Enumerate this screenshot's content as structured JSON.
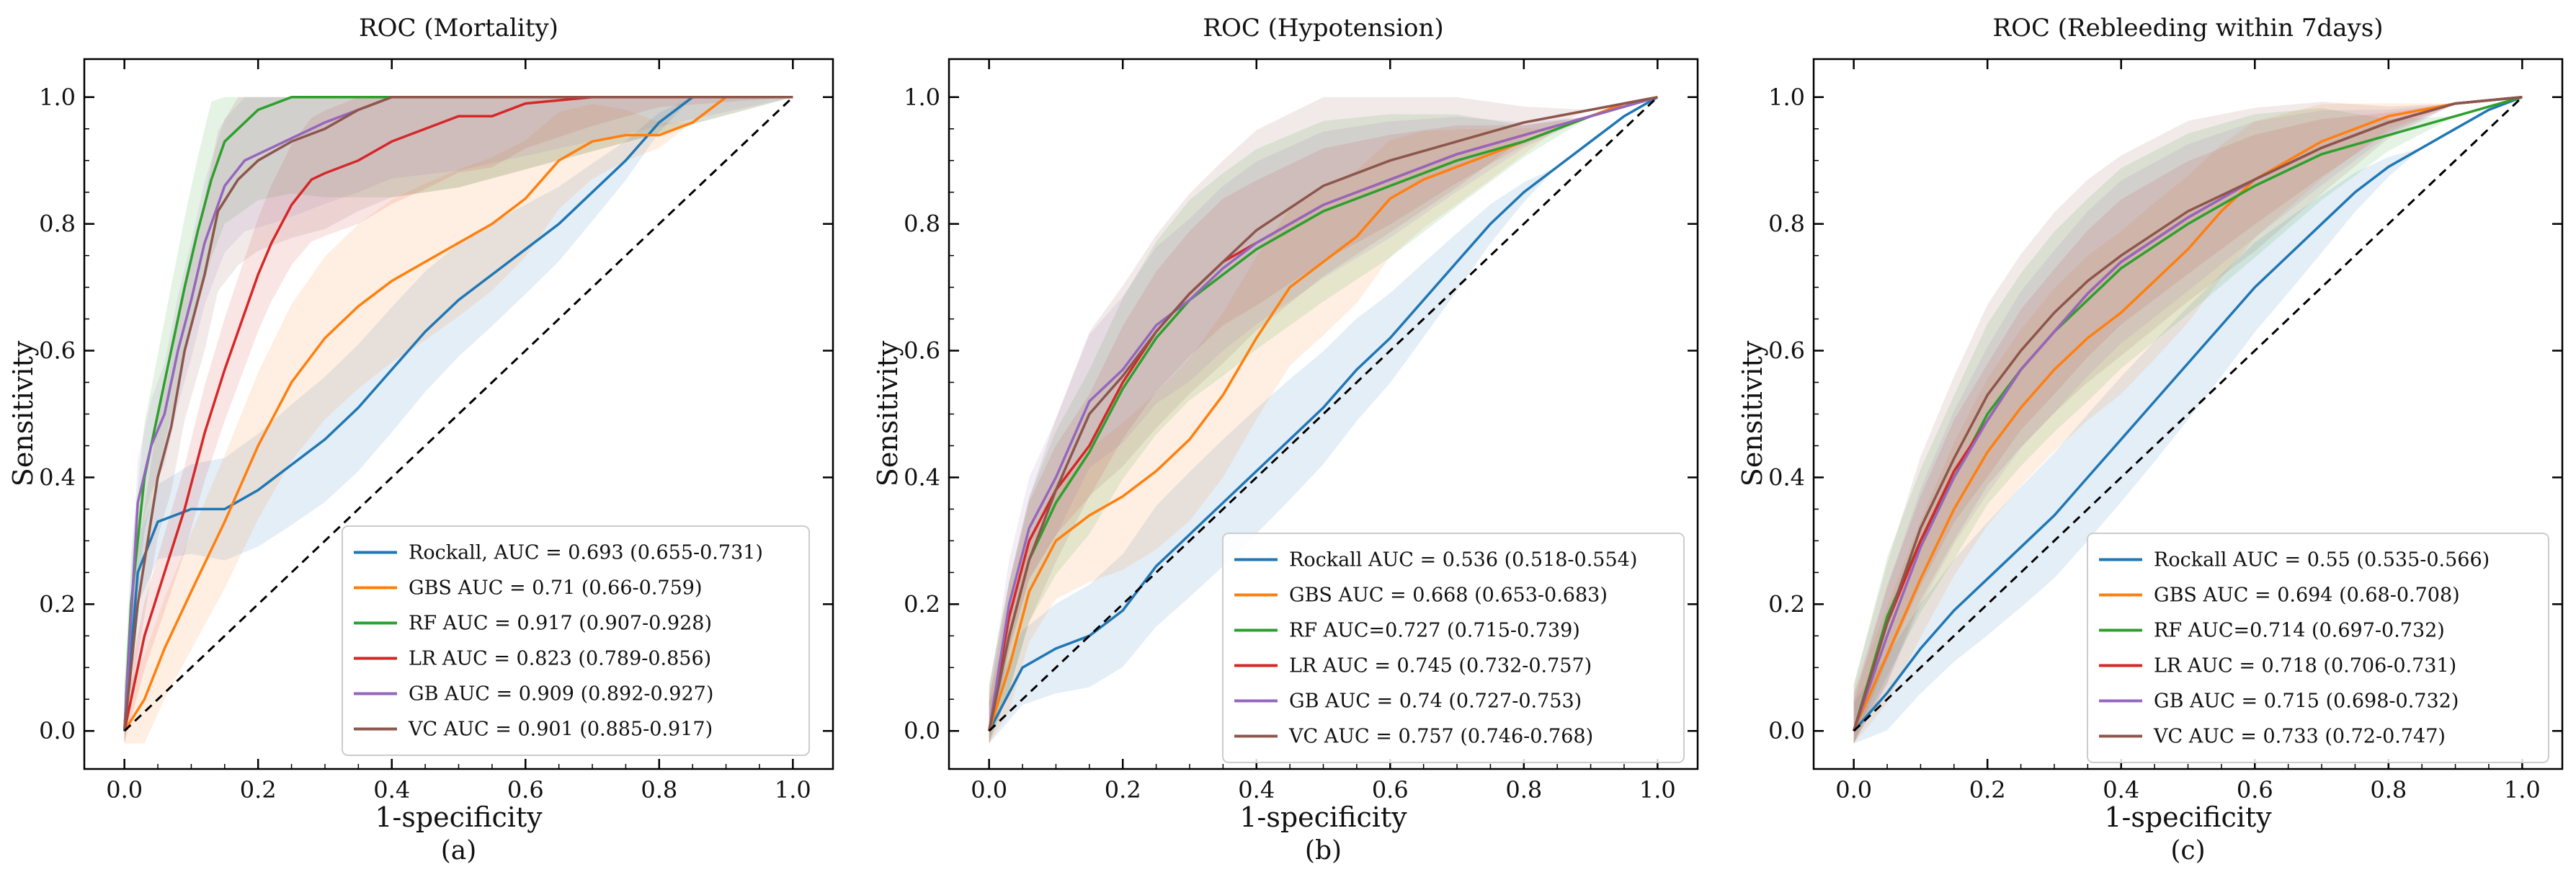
{
  "figure": {
    "ylabel": "Sensitivity",
    "xlabel": "1-specificity",
    "ticks": [
      "0.0",
      "0.2",
      "0.4",
      "0.6",
      "0.8",
      "1.0"
    ],
    "tick_values": [
      0,
      0.2,
      0.4,
      0.6,
      0.8,
      1.0
    ],
    "colors": {
      "Rockall": "#1f77b4",
      "GBS": "#ff7f0e",
      "RF": "#2ca02c",
      "LR": "#d62728",
      "GB": "#9467bd",
      "VC": "#8c564b",
      "chance": "#000000"
    }
  },
  "chart_data": [
    {
      "type": "line",
      "title": "ROC (Mortality)",
      "subcaption": "(a)",
      "xlabel": "1-specificity",
      "ylabel": "Sensitivity",
      "xlim": [
        0,
        1
      ],
      "ylim": [
        0,
        1
      ],
      "legend_position": "bottom-right",
      "series": [
        {
          "name": "Rockall, AUC = 0.693 (0.655-0.731)",
          "key": "Rockall",
          "x": [
            0,
            0.02,
            0.05,
            0.1,
            0.15,
            0.2,
            0.25,
            0.3,
            0.35,
            0.4,
            0.45,
            0.5,
            0.55,
            0.6,
            0.65,
            0.7,
            0.75,
            0.8,
            0.85,
            0.9,
            1.0
          ],
          "y": [
            0,
            0.25,
            0.33,
            0.35,
            0.35,
            0.38,
            0.42,
            0.46,
            0.51,
            0.57,
            0.63,
            0.68,
            0.72,
            0.76,
            0.8,
            0.85,
            0.9,
            0.96,
            1.0,
            1.0,
            1.0
          ]
        },
        {
          "name": "GBS AUC = 0.71 (0.66-0.759)",
          "key": "GBS",
          "x": [
            0,
            0.03,
            0.06,
            0.1,
            0.15,
            0.2,
            0.25,
            0.3,
            0.35,
            0.4,
            0.45,
            0.5,
            0.55,
            0.6,
            0.65,
            0.7,
            0.75,
            0.8,
            0.85,
            0.9,
            1.0
          ],
          "y": [
            0,
            0.05,
            0.13,
            0.22,
            0.33,
            0.45,
            0.55,
            0.62,
            0.67,
            0.71,
            0.74,
            0.77,
            0.8,
            0.84,
            0.9,
            0.93,
            0.94,
            0.94,
            0.96,
            1.0,
            1.0
          ]
        },
        {
          "name": "RF AUC = 0.917 (0.907-0.928)",
          "key": "RF",
          "x": [
            0,
            0.01,
            0.03,
            0.05,
            0.07,
            0.09,
            0.11,
            0.13,
            0.15,
            0.17,
            0.2,
            0.25,
            0.3,
            0.4,
            0.5,
            1.0
          ],
          "y": [
            0,
            0.2,
            0.4,
            0.5,
            0.6,
            0.7,
            0.79,
            0.87,
            0.93,
            0.95,
            0.98,
            1.0,
            1.0,
            1.0,
            1.0,
            1.0
          ]
        },
        {
          "name": "LR AUC = 0.823 (0.789-0.856)",
          "key": "LR",
          "x": [
            0,
            0.03,
            0.06,
            0.09,
            0.12,
            0.15,
            0.18,
            0.2,
            0.22,
            0.25,
            0.28,
            0.3,
            0.35,
            0.4,
            0.45,
            0.5,
            0.55,
            0.6,
            0.7,
            0.8,
            1.0
          ],
          "y": [
            0,
            0.15,
            0.25,
            0.35,
            0.47,
            0.57,
            0.66,
            0.72,
            0.77,
            0.83,
            0.87,
            0.88,
            0.9,
            0.93,
            0.95,
            0.97,
            0.97,
            0.99,
            1.0,
            1.0,
            1.0
          ]
        },
        {
          "name": "GB AUC = 0.909 (0.892-0.927)",
          "key": "GB",
          "x": [
            0,
            0.02,
            0.04,
            0.06,
            0.08,
            0.1,
            0.12,
            0.15,
            0.18,
            0.22,
            0.26,
            0.3,
            0.35,
            0.4,
            0.5,
            1.0
          ],
          "y": [
            0,
            0.36,
            0.45,
            0.5,
            0.6,
            0.68,
            0.77,
            0.86,
            0.9,
            0.92,
            0.94,
            0.96,
            0.98,
            1.0,
            1.0,
            1.0
          ]
        },
        {
          "name": "VC AUC = 0.901 (0.885-0.917)",
          "key": "VC",
          "x": [
            0,
            0.02,
            0.05,
            0.07,
            0.09,
            0.12,
            0.14,
            0.17,
            0.2,
            0.25,
            0.3,
            0.35,
            0.4,
            0.5,
            1.0
          ],
          "y": [
            0,
            0.2,
            0.4,
            0.48,
            0.6,
            0.72,
            0.82,
            0.87,
            0.9,
            0.93,
            0.95,
            0.98,
            1.0,
            1.0,
            1.0
          ]
        },
        {
          "name": "chance",
          "key": "chance",
          "x": [
            0,
            1
          ],
          "y": [
            0,
            1
          ]
        }
      ]
    },
    {
      "type": "line",
      "title": "ROC (Hypotension)",
      "subcaption": "(b)",
      "xlabel": "1-specificity",
      "ylabel": "Sensitivity",
      "xlim": [
        0,
        1
      ],
      "ylim": [
        0,
        1
      ],
      "legend_position": "bottom-right",
      "series": [
        {
          "name": "Rockall AUC = 0.536 (0.518-0.554)",
          "key": "Rockall",
          "x": [
            0,
            0.05,
            0.1,
            0.15,
            0.2,
            0.25,
            0.3,
            0.35,
            0.4,
            0.45,
            0.5,
            0.55,
            0.6,
            0.65,
            0.7,
            0.75,
            0.8,
            0.85,
            0.9,
            0.95,
            1.0
          ],
          "y": [
            0,
            0.1,
            0.13,
            0.15,
            0.19,
            0.26,
            0.31,
            0.36,
            0.41,
            0.46,
            0.51,
            0.57,
            0.62,
            0.68,
            0.74,
            0.8,
            0.85,
            0.89,
            0.93,
            0.97,
            1.0
          ]
        },
        {
          "name": "GBS AUC = 0.668 (0.653-0.683)",
          "key": "GBS",
          "x": [
            0,
            0.03,
            0.06,
            0.1,
            0.15,
            0.2,
            0.25,
            0.3,
            0.35,
            0.4,
            0.45,
            0.5,
            0.55,
            0.6,
            0.65,
            0.7,
            0.75,
            0.8,
            0.85,
            0.9,
            0.95,
            1.0
          ],
          "y": [
            0,
            0.1,
            0.22,
            0.3,
            0.34,
            0.37,
            0.41,
            0.46,
            0.53,
            0.62,
            0.7,
            0.74,
            0.78,
            0.84,
            0.87,
            0.89,
            0.91,
            0.93,
            0.95,
            0.97,
            0.99,
            1.0
          ]
        },
        {
          "name": "RF AUC=0.727 (0.715-0.739)",
          "key": "RF",
          "x": [
            0,
            0.03,
            0.06,
            0.1,
            0.15,
            0.2,
            0.25,
            0.3,
            0.35,
            0.4,
            0.5,
            0.6,
            0.7,
            0.8,
            0.9,
            1.0
          ],
          "y": [
            0,
            0.15,
            0.27,
            0.36,
            0.44,
            0.54,
            0.62,
            0.68,
            0.72,
            0.76,
            0.82,
            0.86,
            0.9,
            0.93,
            0.97,
            1.0
          ]
        },
        {
          "name": "LR AUC = 0.745 (0.732-0.757)",
          "key": "LR",
          "x": [
            0,
            0.03,
            0.06,
            0.1,
            0.15,
            0.2,
            0.25,
            0.3,
            0.35,
            0.4,
            0.5,
            0.6,
            0.7,
            0.8,
            0.9,
            1.0
          ],
          "y": [
            0,
            0.18,
            0.3,
            0.38,
            0.45,
            0.55,
            0.63,
            0.69,
            0.74,
            0.77,
            0.83,
            0.87,
            0.91,
            0.94,
            0.97,
            1.0
          ]
        },
        {
          "name": "GB AUC = 0.74 (0.727-0.753)",
          "key": "GB",
          "x": [
            0,
            0.03,
            0.06,
            0.1,
            0.15,
            0.2,
            0.25,
            0.3,
            0.35,
            0.4,
            0.5,
            0.6,
            0.7,
            0.8,
            0.9,
            1.0
          ],
          "y": [
            0,
            0.2,
            0.32,
            0.4,
            0.52,
            0.57,
            0.64,
            0.68,
            0.73,
            0.77,
            0.83,
            0.87,
            0.91,
            0.94,
            0.97,
            1.0
          ]
        },
        {
          "name": "VC AUC = 0.757 (0.746-0.768)",
          "key": "VC",
          "x": [
            0,
            0.03,
            0.06,
            0.1,
            0.15,
            0.2,
            0.25,
            0.3,
            0.35,
            0.4,
            0.5,
            0.6,
            0.7,
            0.8,
            0.9,
            1.0
          ],
          "y": [
            0,
            0.15,
            0.27,
            0.38,
            0.5,
            0.56,
            0.63,
            0.69,
            0.74,
            0.79,
            0.86,
            0.9,
            0.93,
            0.96,
            0.98,
            1.0
          ]
        },
        {
          "name": "chance",
          "key": "chance",
          "x": [
            0,
            1
          ],
          "y": [
            0,
            1
          ]
        }
      ]
    },
    {
      "type": "line",
      "title": "ROC (Rebleeding within 7days)",
      "subcaption": "(c)",
      "xlabel": "1-specificity",
      "ylabel": "Sensitivity",
      "xlim": [
        0,
        1
      ],
      "ylim": [
        0,
        1
      ],
      "legend_position": "bottom-right",
      "series": [
        {
          "name": "Rockall AUC = 0.55 (0.535-0.566)",
          "key": "Rockall",
          "x": [
            0,
            0.05,
            0.1,
            0.15,
            0.2,
            0.25,
            0.3,
            0.35,
            0.4,
            0.45,
            0.5,
            0.55,
            0.6,
            0.65,
            0.7,
            0.75,
            0.8,
            0.85,
            0.9,
            0.95,
            1.0
          ],
          "y": [
            0,
            0.06,
            0.13,
            0.19,
            0.24,
            0.29,
            0.34,
            0.4,
            0.46,
            0.52,
            0.58,
            0.64,
            0.7,
            0.75,
            0.8,
            0.85,
            0.89,
            0.92,
            0.95,
            0.98,
            1.0
          ]
        },
        {
          "name": "GBS AUC = 0.694 (0.68-0.708)",
          "key": "GBS",
          "x": [
            0,
            0.05,
            0.1,
            0.15,
            0.2,
            0.25,
            0.3,
            0.35,
            0.4,
            0.45,
            0.5,
            0.55,
            0.6,
            0.7,
            0.8,
            0.9,
            1.0
          ],
          "y": [
            0,
            0.12,
            0.24,
            0.35,
            0.44,
            0.51,
            0.57,
            0.62,
            0.66,
            0.71,
            0.76,
            0.82,
            0.87,
            0.93,
            0.97,
            0.99,
            1.0
          ]
        },
        {
          "name": "RF AUC=0.714 (0.697-0.732)",
          "key": "RF",
          "x": [
            0,
            0.05,
            0.1,
            0.15,
            0.2,
            0.25,
            0.3,
            0.35,
            0.4,
            0.5,
            0.6,
            0.7,
            0.8,
            0.9,
            1.0
          ],
          "y": [
            0,
            0.18,
            0.3,
            0.4,
            0.5,
            0.57,
            0.63,
            0.68,
            0.73,
            0.8,
            0.86,
            0.91,
            0.94,
            0.97,
            1.0
          ]
        },
        {
          "name": "LR AUC = 0.718 (0.706-0.731)",
          "key": "LR",
          "x": [
            0,
            0.05,
            0.1,
            0.15,
            0.2,
            0.25,
            0.3,
            0.35,
            0.4,
            0.5,
            0.6,
            0.7,
            0.8,
            0.9,
            1.0
          ],
          "y": [
            0,
            0.17,
            0.3,
            0.41,
            0.49,
            0.57,
            0.63,
            0.69,
            0.74,
            0.81,
            0.87,
            0.92,
            0.96,
            0.99,
            1.0
          ]
        },
        {
          "name": "GB AUC = 0.715 (0.698-0.732)",
          "key": "GB",
          "x": [
            0,
            0.05,
            0.1,
            0.15,
            0.2,
            0.25,
            0.3,
            0.35,
            0.4,
            0.5,
            0.6,
            0.7,
            0.8,
            0.9,
            1.0
          ],
          "y": [
            0,
            0.15,
            0.29,
            0.4,
            0.49,
            0.57,
            0.63,
            0.69,
            0.74,
            0.81,
            0.87,
            0.92,
            0.96,
            0.99,
            1.0
          ]
        },
        {
          "name": "VC AUC = 0.733 (0.72-0.747)",
          "key": "VC",
          "x": [
            0,
            0.05,
            0.1,
            0.15,
            0.2,
            0.25,
            0.3,
            0.35,
            0.4,
            0.5,
            0.6,
            0.7,
            0.8,
            0.9,
            1.0
          ],
          "y": [
            0,
            0.17,
            0.32,
            0.43,
            0.53,
            0.6,
            0.66,
            0.71,
            0.75,
            0.82,
            0.87,
            0.92,
            0.96,
            0.99,
            1.0
          ]
        },
        {
          "name": "chance",
          "key": "chance",
          "x": [
            0,
            1
          ],
          "y": [
            0,
            1
          ]
        }
      ]
    }
  ]
}
